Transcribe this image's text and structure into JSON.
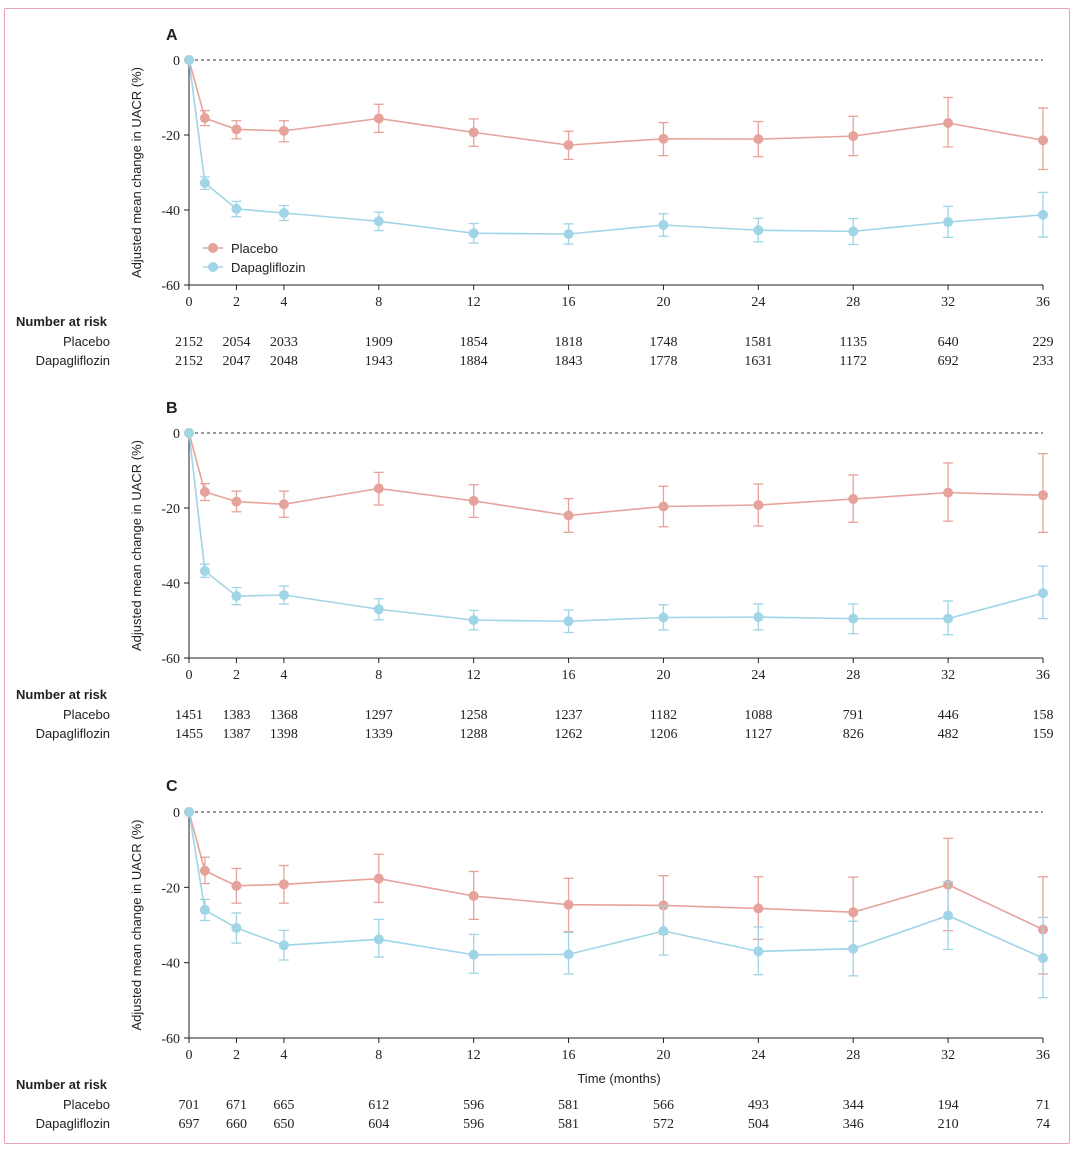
{
  "colors": {
    "placebo": "#e6a39b",
    "dapagliflozin": "#9fd5e6",
    "frame": "#e7a3b6",
    "axis": "#222222"
  },
  "legend": {
    "placebo": "Placebo",
    "dapagliflozin": "Dapagliflozin"
  },
  "risk_labels": {
    "header": "Number at risk",
    "placebo": "Placebo",
    "dapagliflozin": "Dapagliflozin"
  },
  "chart_data": [
    {
      "panel": "A",
      "type": "line",
      "xlabel": "",
      "ylabel": "Adjusted mean change in UACR (%)",
      "ylim": [
        -60,
        0
      ],
      "yticks": [
        "0",
        "-20",
        "-40",
        "-60"
      ],
      "xticks": [
        "0",
        "2",
        "4",
        "8",
        "12",
        "16",
        "20",
        "24",
        "28",
        "32",
        "36"
      ],
      "reference_line": 0,
      "show_legend": true,
      "series": [
        {
          "name": "Placebo",
          "x": [
            0,
            0.67,
            2,
            4,
            8,
            12,
            16,
            20,
            24,
            28,
            32,
            36
          ],
          "y": [
            0,
            -15.5,
            -18.5,
            -18.9,
            -15.6,
            -19.3,
            -22.7,
            -21.0,
            -21.1,
            -20.3,
            -16.8,
            -21.4
          ],
          "ci_low": [
            0,
            -17.5,
            -21.0,
            -21.8,
            -19.3,
            -23.0,
            -26.5,
            -25.5,
            -25.8,
            -25.5,
            -23.2,
            -29.2
          ],
          "ci_high": [
            0,
            -13.5,
            -16.2,
            -16.2,
            -11.8,
            -15.7,
            -19.0,
            -16.7,
            -16.4,
            -15.0,
            -10.0,
            -12.8
          ]
        },
        {
          "name": "Dapagliflozin",
          "x": [
            0,
            0.67,
            2,
            4,
            8,
            12,
            16,
            20,
            24,
            28,
            32,
            36
          ],
          "y": [
            0,
            -32.8,
            -39.7,
            -40.8,
            -43.0,
            -46.2,
            -46.4,
            -44.0,
            -45.4,
            -45.7,
            -43.2,
            -41.3
          ],
          "ci_low": [
            0,
            -34.5,
            -41.8,
            -42.8,
            -45.5,
            -48.8,
            -49.1,
            -47.0,
            -48.5,
            -49.2,
            -47.3,
            -47.2
          ],
          "ci_high": [
            0,
            -31.2,
            -37.7,
            -38.8,
            -40.6,
            -43.6,
            -43.7,
            -41.0,
            -42.2,
            -42.3,
            -39.0,
            -35.3
          ]
        }
      ],
      "risk": {
        "placebo": [
          "2152",
          "2054",
          "2033",
          "1909",
          "1854",
          "1818",
          "1748",
          "1581",
          "1135",
          "640",
          "229"
        ],
        "dapagliflozin": [
          "2152",
          "2047",
          "2048",
          "1943",
          "1884",
          "1843",
          "1778",
          "1631",
          "1172",
          "692",
          "233"
        ]
      }
    },
    {
      "panel": "B",
      "type": "line",
      "xlabel": "",
      "ylabel": "Adjusted mean change in UACR (%)",
      "ylim": [
        -60,
        0
      ],
      "yticks": [
        "0",
        "-20",
        "-40",
        "-60"
      ],
      "xticks": [
        "0",
        "2",
        "4",
        "8",
        "12",
        "16",
        "20",
        "24",
        "28",
        "32",
        "36"
      ],
      "reference_line": 0,
      "show_legend": false,
      "series": [
        {
          "name": "Placebo",
          "x": [
            0,
            0.67,
            2,
            4,
            8,
            12,
            16,
            20,
            24,
            28,
            32,
            36
          ],
          "y": [
            0,
            -15.7,
            -18.3,
            -19.0,
            -14.8,
            -18.1,
            -22.0,
            -19.6,
            -19.2,
            -17.6,
            -15.9,
            -16.6
          ],
          "ci_low": [
            0,
            -18.0,
            -21.0,
            -22.5,
            -19.2,
            -22.5,
            -26.5,
            -25.0,
            -24.8,
            -23.8,
            -23.5,
            -26.5
          ],
          "ci_high": [
            0,
            -13.5,
            -15.5,
            -15.5,
            -10.5,
            -13.8,
            -17.5,
            -14.2,
            -13.6,
            -11.2,
            -8.0,
            -5.5
          ]
        },
        {
          "name": "Dapagliflozin",
          "x": [
            0,
            0.67,
            2,
            4,
            8,
            12,
            16,
            20,
            24,
            28,
            32,
            36
          ],
          "y": [
            0,
            -36.8,
            -43.5,
            -43.2,
            -47.0,
            -49.9,
            -50.2,
            -49.2,
            -49.1,
            -49.5,
            -49.5,
            -42.7
          ],
          "ci_low": [
            0,
            -38.5,
            -45.8,
            -45.6,
            -49.8,
            -52.5,
            -53.2,
            -52.5,
            -52.5,
            -53.5,
            -53.8,
            -49.5
          ],
          "ci_high": [
            0,
            -35.0,
            -41.2,
            -40.8,
            -44.2,
            -47.3,
            -47.2,
            -45.8,
            -45.6,
            -45.6,
            -44.8,
            -35.5
          ]
        }
      ],
      "risk": {
        "placebo": [
          "1451",
          "1383",
          "1368",
          "1297",
          "1258",
          "1237",
          "1182",
          "1088",
          "791",
          "446",
          "158"
        ],
        "dapagliflozin": [
          "1455",
          "1387",
          "1398",
          "1339",
          "1288",
          "1262",
          "1206",
          "1127",
          "826",
          "482",
          "159"
        ]
      }
    },
    {
      "panel": "C",
      "type": "line",
      "xlabel": "Time (months)",
      "ylabel": "Adjusted mean change in UACR (%)",
      "ylim": [
        -60,
        0
      ],
      "yticks": [
        "0",
        "-20",
        "-40",
        "-60"
      ],
      "xticks": [
        "0",
        "2",
        "4",
        "8",
        "12",
        "16",
        "20",
        "24",
        "28",
        "32",
        "36"
      ],
      "reference_line": 0,
      "show_legend": false,
      "series": [
        {
          "name": "Placebo",
          "x": [
            0,
            0.67,
            2,
            4,
            8,
            12,
            16,
            20,
            24,
            28,
            32,
            36
          ],
          "y": [
            0,
            -15.6,
            -19.6,
            -19.2,
            -17.7,
            -22.3,
            -24.6,
            -24.8,
            -25.6,
            -26.6,
            -19.3,
            -31.2
          ],
          "ci_low": [
            0,
            -19.0,
            -24.2,
            -24.2,
            -24.0,
            -28.5,
            -31.8,
            -32.5,
            -33.8,
            -36.0,
            -31.5,
            -43.0
          ],
          "ci_high": [
            0,
            -12.0,
            -15.0,
            -14.2,
            -11.2,
            -15.8,
            -17.6,
            -16.9,
            -17.2,
            -17.3,
            -7.0,
            -17.2
          ]
        },
        {
          "name": "Dapagliflozin",
          "x": [
            0,
            0.67,
            2,
            4,
            8,
            12,
            16,
            20,
            24,
            28,
            32,
            36
          ],
          "y": [
            0,
            -26.0,
            -30.8,
            -35.4,
            -33.8,
            -37.9,
            -37.8,
            -31.6,
            -37.0,
            -36.3,
            -27.5,
            -38.8
          ],
          "ci_low": [
            0,
            -28.8,
            -34.8,
            -39.3,
            -38.5,
            -42.8,
            -43.0,
            -38.0,
            -43.2,
            -43.5,
            -36.5,
            -49.3
          ],
          "ci_high": [
            0,
            -23.2,
            -26.8,
            -31.4,
            -28.5,
            -32.5,
            -32.0,
            -25.0,
            -30.5,
            -29.0,
            -18.5,
            -28.0
          ]
        }
      ],
      "risk": {
        "placebo": [
          "701",
          "671",
          "665",
          "612",
          "596",
          "581",
          "566",
          "493",
          "344",
          "194",
          "71"
        ],
        "dapagliflozin": [
          "697",
          "660",
          "650",
          "604",
          "596",
          "581",
          "572",
          "504",
          "346",
          "210",
          "74"
        ]
      }
    }
  ]
}
